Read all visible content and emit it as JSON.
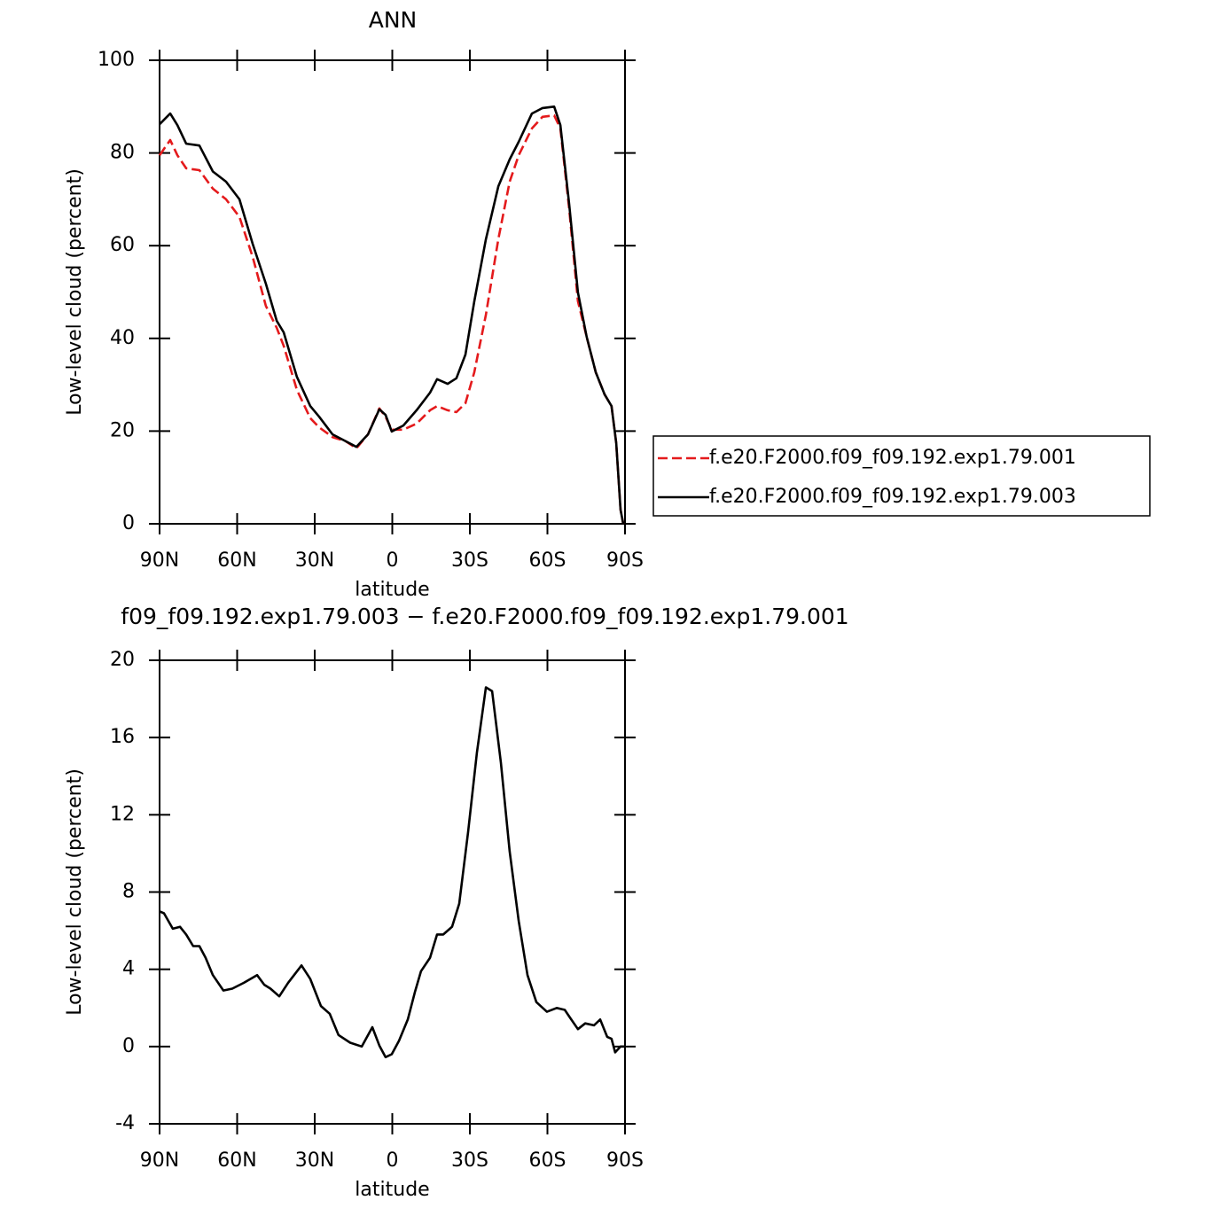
{
  "chart_data": [
    {
      "type": "line",
      "title": "ANN",
      "xlabel": "latitude",
      "ylabel": "Low-level cloud (percent)",
      "x": [
        90,
        85.9,
        83.1,
        79.7,
        74.6,
        69.4,
        64.3,
        59.1,
        54,
        48.9,
        44.7,
        42,
        36.9,
        31.7,
        28.3,
        23.1,
        18,
        13.9,
        9.4,
        5,
        2.6,
        0.2,
        -4.3,
        -9.4,
        -14.6,
        -17.3,
        -21.4,
        -24.8,
        -28.3,
        -31.7,
        -36.2,
        -41,
        -45.4,
        -48.9,
        -54,
        -58.1,
        -62.6,
        -65,
        -68.4,
        -71.8,
        -75.2,
        -78.7,
        -82.1,
        -84.8,
        -86.6,
        -88.3,
        -89.3
      ],
      "series": [
        {
          "name": "f.e20.F2000.f09_f09.192.exp1.79.001",
          "color": "#e41a1c",
          "style": "dashed",
          "values": [
            79.5,
            82.8,
            79.5,
            76.7,
            76.3,
            72.3,
            70,
            66.2,
            57.6,
            47,
            42.3,
            38.4,
            28.9,
            22.8,
            20.8,
            18.7,
            17.8,
            16.3,
            19.3,
            24.9,
            23.1,
            20.3,
            20.3,
            21.6,
            24.5,
            25.4,
            24.5,
            24.1,
            26,
            32.7,
            45.1,
            61.4,
            73.8,
            79.5,
            85.3,
            87.8,
            88.1,
            85.3,
            68,
            48,
            40.3,
            32.7,
            27.9,
            25.4,
            17.4,
            3,
            0
          ]
        },
        {
          "name": "f.e20.F2000.f09_f09.192.exp1.79.003",
          "color": "#000000",
          "style": "solid",
          "values": [
            86.2,
            88.5,
            86,
            82,
            81.6,
            76,
            73.8,
            70,
            60.4,
            51.8,
            43.8,
            41.3,
            31.7,
            25.4,
            23.1,
            19.3,
            17.8,
            16.6,
            19.3,
            24.7,
            23.5,
            19.9,
            21.2,
            24.5,
            28.3,
            31.2,
            30.2,
            31.4,
            36.5,
            48,
            61.4,
            72.8,
            78.6,
            82.4,
            88.5,
            89.7,
            90,
            86,
            69,
            49.9,
            40.3,
            32.7,
            27.9,
            25.4,
            17.4,
            3,
            0
          ]
        }
      ],
      "xlim": [
        90,
        -90
      ],
      "ylim": [
        0,
        100
      ],
      "xticks": [
        {
          "value": 90,
          "label": "90N"
        },
        {
          "value": 60,
          "label": "60N"
        },
        {
          "value": 30,
          "label": "30N"
        },
        0,
        {
          "value": -30,
          "label": "30S"
        },
        {
          "value": -60,
          "label": "60S"
        },
        {
          "value": -90,
          "label": "90S"
        }
      ],
      "yticks": [
        0,
        20,
        40,
        60,
        80,
        100
      ],
      "legend": "right"
    },
    {
      "type": "line",
      "title": "f09_f09.192.exp1.79.003 − f.e20.F2000.f09_f09.192.exp1.79.001",
      "xlabel": "latitude",
      "ylabel": "Low-level cloud (percent)",
      "x": [
        90,
        88.3,
        84.9,
        82.1,
        79.7,
        77,
        74.6,
        72.2,
        69.4,
        65.3,
        61.9,
        57.4,
        52.3,
        49.5,
        47.1,
        43.7,
        40.3,
        35.1,
        31.7,
        27.6,
        24.2,
        20.8,
        16.3,
        11.8,
        7.7,
        5,
        2.6,
        0.2,
        -2.6,
        -6,
        -8.7,
        -11.1,
        -14.6,
        -17.3,
        -19.7,
        -23.1,
        -25.9,
        -29.3,
        -32.7,
        -36.2,
        -38.6,
        -42,
        -45.4,
        -48.9,
        -52.3,
        -55.7,
        -59.8,
        -63.6,
        -66.7,
        -68.7,
        -71.8,
        -74.6,
        -78,
        -80.4,
        -83.1,
        -84.8,
        -86.2,
        -88.3,
        -90
      ],
      "series": [
        {
          "color": "#000000",
          "style": "solid",
          "values": [
            7.0,
            6.9,
            6.1,
            6.2,
            5.8,
            5.2,
            5.2,
            4.6,
            3.7,
            2.9,
            3.0,
            3.3,
            3.7,
            3.2,
            3.0,
            2.6,
            3.3,
            4.2,
            3.5,
            2.1,
            1.7,
            0.6,
            0.2,
            0,
            1.0,
            0.05,
            -0.55,
            -0.4,
            0.3,
            1.4,
            2.8,
            3.9,
            4.6,
            5.8,
            5.8,
            6.2,
            7.4,
            11.1,
            15.2,
            18.6,
            18.4,
            14.7,
            10.1,
            6.5,
            3.7,
            2.3,
            1.8,
            2.0,
            1.9,
            1.5,
            0.9,
            1.2,
            1.1,
            1.4,
            0.5,
            0.4,
            -0.3,
            0,
            0
          ]
        }
      ],
      "xlim": [
        90,
        -90
      ],
      "ylim": [
        -4,
        20
      ],
      "xticks": [
        {
          "value": 90,
          "label": "90N"
        },
        {
          "value": 60,
          "label": "60N"
        },
        {
          "value": 30,
          "label": "30N"
        },
        0,
        {
          "value": -30,
          "label": "30S"
        },
        {
          "value": -60,
          "label": "60S"
        },
        {
          "value": -90,
          "label": "90S"
        }
      ],
      "yticks": [
        -4,
        0,
        4,
        8,
        12,
        16,
        20
      ]
    }
  ]
}
